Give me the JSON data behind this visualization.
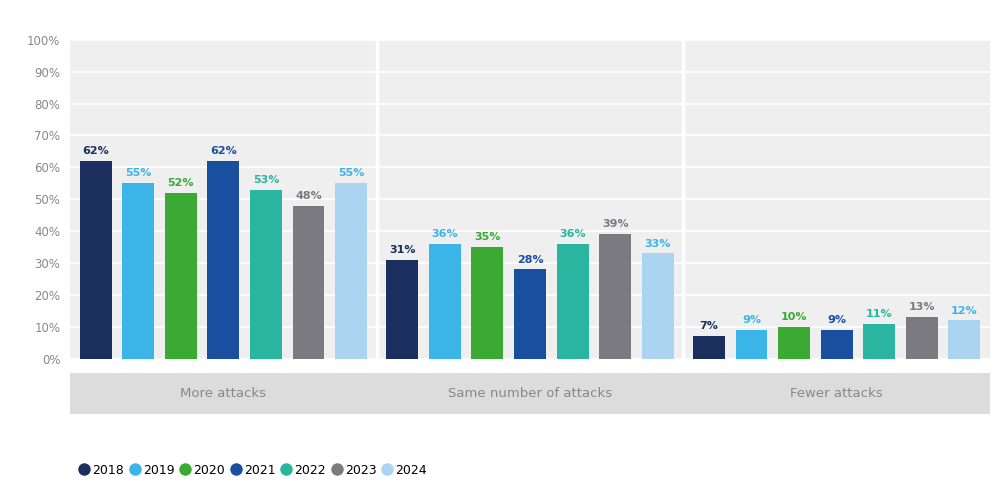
{
  "groups": [
    "More attacks",
    "Same number of attacks",
    "Fewer attacks"
  ],
  "years": [
    "2018",
    "2019",
    "2020",
    "2021",
    "2022",
    "2023",
    "2024"
  ],
  "colors": [
    "#1b2f5e",
    "#3bb4e8",
    "#3aaa35",
    "#1a4fa0",
    "#2ab5a0",
    "#7a7a80",
    "#aad4f0"
  ],
  "label_colors": [
    "#1b2f5e",
    "#3bb4e8",
    "#3aaa35",
    "#1a4fa0",
    "#2ab5a0",
    "#7a7a80",
    "#3bb4e8"
  ],
  "values": {
    "More attacks": [
      62,
      55,
      52,
      62,
      53,
      48,
      55
    ],
    "Same number of attacks": [
      31,
      36,
      35,
      28,
      36,
      39,
      33
    ],
    "Fewer attacks": [
      7,
      9,
      10,
      9,
      11,
      13,
      12
    ]
  },
  "ylim": [
    0,
    100
  ],
  "yticks": [
    0,
    10,
    20,
    30,
    40,
    50,
    60,
    70,
    80,
    90,
    100
  ],
  "ytick_labels": [
    "0%",
    "10%",
    "20%",
    "30%",
    "40%",
    "50%",
    "60%",
    "70%",
    "80%",
    "90%",
    "100%"
  ],
  "plot_bg_color": "#efefef",
  "figure_bg_color": "#ffffff",
  "grid_color": "#ffffff",
  "group_label_bg": "#dcdcdc",
  "group_label_color": "#888888",
  "bar_value_fontsize": 8,
  "axis_tick_fontsize": 8.5,
  "group_label_fontsize": 9.5,
  "legend_fontsize": 9
}
